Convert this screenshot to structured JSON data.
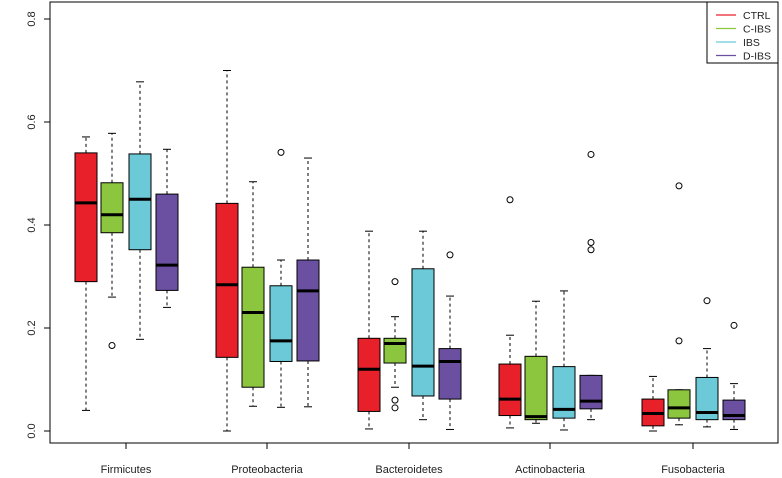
{
  "chart_data": {
    "type": "boxplot",
    "title": "",
    "xlabel": "",
    "ylabel": "",
    "ylim": [
      0.0,
      0.8
    ],
    "yticks": [
      "0.0",
      "0.2",
      "0.4",
      "0.6",
      "0.8"
    ],
    "categories": [
      "Firmicutes",
      "Proteobacteria",
      "Bacteroidetes",
      "Actinobacteria",
      "Fusobacteria"
    ],
    "legend_position": "top-right",
    "series": [
      {
        "name": "CTRL",
        "color": "#e8202a",
        "boxes": [
          {
            "min": 0.04,
            "q1": 0.29,
            "median": 0.443,
            "q3": 0.54,
            "max": 0.571,
            "outliers": []
          },
          {
            "min": 0.0,
            "q1": 0.143,
            "median": 0.284,
            "q3": 0.442,
            "max": 0.7,
            "outliers": []
          },
          {
            "min": 0.004,
            "q1": 0.038,
            "median": 0.12,
            "q3": 0.18,
            "max": 0.388,
            "outliers": []
          },
          {
            "min": 0.006,
            "q1": 0.03,
            "median": 0.062,
            "q3": 0.13,
            "max": 0.186,
            "outliers": [
              0.449
            ]
          },
          {
            "min": 0.0,
            "q1": 0.01,
            "median": 0.034,
            "q3": 0.062,
            "max": 0.106,
            "outliers": []
          }
        ]
      },
      {
        "name": "C-IBS",
        "color": "#8cc63f",
        "boxes": [
          {
            "min": 0.26,
            "q1": 0.385,
            "median": 0.42,
            "q3": 0.482,
            "max": 0.578,
            "outliers": [
              0.166
            ]
          },
          {
            "min": 0.048,
            "q1": 0.085,
            "median": 0.23,
            "q3": 0.318,
            "max": 0.484,
            "outliers": []
          },
          {
            "min": 0.085,
            "q1": 0.132,
            "median": 0.17,
            "q3": 0.18,
            "max": 0.222,
            "outliers": [
              0.29,
              0.06,
              0.045
            ]
          },
          {
            "min": 0.015,
            "q1": 0.022,
            "median": 0.028,
            "q3": 0.145,
            "max": 0.252,
            "outliers": []
          },
          {
            "min": 0.012,
            "q1": 0.025,
            "median": 0.045,
            "q3": 0.08,
            "max": 0.08,
            "outliers": [
              0.476,
              0.175
            ]
          }
        ]
      },
      {
        "name": "IBS",
        "color": "#6ccad8",
        "boxes": [
          {
            "min": 0.178,
            "q1": 0.352,
            "median": 0.45,
            "q3": 0.538,
            "max": 0.678,
            "outliers": []
          },
          {
            "min": 0.046,
            "q1": 0.135,
            "median": 0.175,
            "q3": 0.282,
            "max": 0.332,
            "outliers": [
              0.541
            ]
          },
          {
            "min": 0.022,
            "q1": 0.068,
            "median": 0.126,
            "q3": 0.315,
            "max": 0.388,
            "outliers": []
          },
          {
            "min": 0.002,
            "q1": 0.025,
            "median": 0.042,
            "q3": 0.125,
            "max": 0.272,
            "outliers": []
          },
          {
            "min": 0.008,
            "q1": 0.022,
            "median": 0.036,
            "q3": 0.104,
            "max": 0.16,
            "outliers": [
              0.253
            ]
          }
        ]
      },
      {
        "name": "D-IBS",
        "color": "#6b4fa0",
        "boxes": [
          {
            "min": 0.24,
            "q1": 0.273,
            "median": 0.322,
            "q3": 0.46,
            "max": 0.547,
            "outliers": []
          },
          {
            "min": 0.047,
            "q1": 0.136,
            "median": 0.272,
            "q3": 0.332,
            "max": 0.53,
            "outliers": []
          },
          {
            "min": 0.003,
            "q1": 0.062,
            "median": 0.135,
            "q3": 0.16,
            "max": 0.262,
            "outliers": [
              0.342
            ]
          },
          {
            "min": 0.022,
            "q1": 0.043,
            "median": 0.058,
            "q3": 0.108,
            "max": 0.108,
            "outliers": [
              0.537,
              0.366,
              0.352
            ]
          },
          {
            "min": 0.003,
            "q1": 0.022,
            "median": 0.03,
            "q3": 0.06,
            "max": 0.092,
            "outliers": [
              0.205
            ]
          }
        ]
      }
    ]
  }
}
